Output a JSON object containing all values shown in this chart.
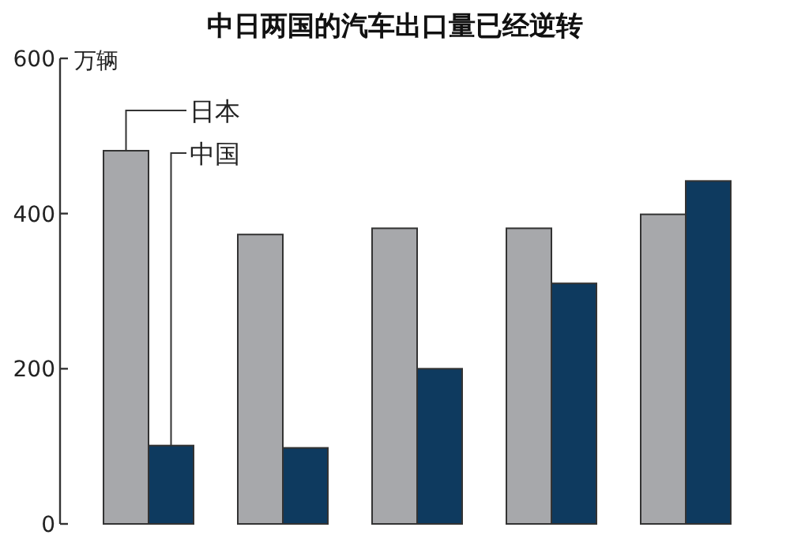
{
  "chart_data": {
    "type": "bar",
    "title": "中日两国的汽车出口量已经逆转",
    "ylabel": "万辆",
    "categories": [
      null,
      null,
      null,
      null,
      null
    ],
    "series": [
      {
        "name": "日本",
        "color": "#a7a8ab",
        "values": [
          481,
          373,
          381,
          381,
          399
        ]
      },
      {
        "name": "中国",
        "color": "#0e3a5f",
        "values": [
          101,
          98,
          200,
          310,
          442
        ]
      }
    ],
    "ylim": [
      0,
      600
    ],
    "yticks": [
      0,
      200,
      400,
      600
    ],
    "tick_labels": "y"
  }
}
